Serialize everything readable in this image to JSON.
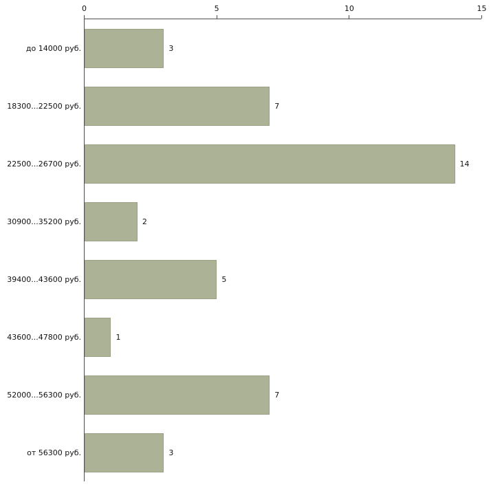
{
  "chart_data": {
    "type": "bar",
    "orientation": "horizontal",
    "title": "",
    "xlabel": "",
    "ylabel": "",
    "categories": [
      "до 14000 руб.",
      "18300...22500 руб.",
      "22500...26700 руб.",
      "30900...35200 руб.",
      "39400...43600 руб.",
      "43600...47800 руб.",
      "52000...56300 руб.",
      "от 56300 руб."
    ],
    "values": [
      3,
      7,
      14,
      2,
      5,
      1,
      7,
      3
    ],
    "xlim": [
      0,
      15
    ],
    "xticks": [
      0,
      5,
      10,
      15
    ],
    "axis_position": "top",
    "grid": false,
    "legend": false,
    "bar_color": "#acb295",
    "bar_border_color": "#9ba183",
    "axis_color": "#4d4d4d",
    "text_color": "#111111",
    "background": "#ffffff"
  }
}
